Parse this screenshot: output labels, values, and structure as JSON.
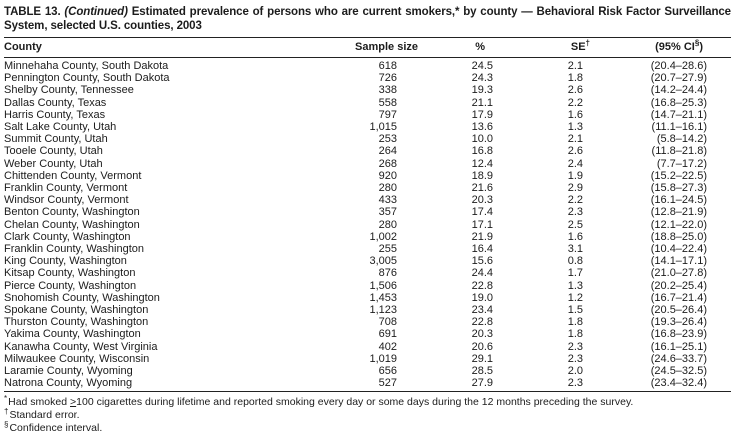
{
  "title": {
    "label": "TABLE 13.",
    "continued": "(Continued)",
    "text": "Estimated prevalence of persons who are current smokers,* by county — Behavioral Risk Factor Surveillance System, selected U.S. counties, 2003"
  },
  "colors": {
    "text": "#1c1c1c",
    "rule": "#222222",
    "background": "#ffffff"
  },
  "table": {
    "columns": {
      "county": "County",
      "sample_size": "Sample size",
      "percent": "%",
      "se": "SE",
      "se_sup": "†",
      "ci": "(95% CI",
      "ci_sup": "§",
      "ci_close": ")"
    },
    "rows": [
      {
        "county": "Minnehaha County, South Dakota",
        "sample_size": "618",
        "percent": "24.5",
        "se": "2.1",
        "ci": "(20.4–28.6)"
      },
      {
        "county": "Pennington County, South Dakota",
        "sample_size": "726",
        "percent": "24.3",
        "se": "1.8",
        "ci": "(20.7–27.9)"
      },
      {
        "county": "Shelby County, Tennessee",
        "sample_size": "338",
        "percent": "19.3",
        "se": "2.6",
        "ci": "(14.2–24.4)"
      },
      {
        "county": "Dallas County, Texas",
        "sample_size": "558",
        "percent": "21.1",
        "se": "2.2",
        "ci": "(16.8–25.3)"
      },
      {
        "county": "Harris County, Texas",
        "sample_size": "797",
        "percent": "17.9",
        "se": "1.6",
        "ci": "(14.7–21.1)"
      },
      {
        "county": "Salt Lake County, Utah",
        "sample_size": "1,015",
        "percent": "13.6",
        "se": "1.3",
        "ci": "(11.1–16.1)"
      },
      {
        "county": "Summit County, Utah",
        "sample_size": "253",
        "percent": "10.0",
        "se": "2.1",
        "ci": "(5.8–14.2)"
      },
      {
        "county": "Tooele County, Utah",
        "sample_size": "264",
        "percent": "16.8",
        "se": "2.6",
        "ci": "(11.8–21.8)"
      },
      {
        "county": "Weber County, Utah",
        "sample_size": "268",
        "percent": "12.4",
        "se": "2.4",
        "ci": "(7.7–17.2)"
      },
      {
        "county": "Chittenden County, Vermont",
        "sample_size": "920",
        "percent": "18.9",
        "se": "1.9",
        "ci": "(15.2–22.5)"
      },
      {
        "county": "Franklin County, Vermont",
        "sample_size": "280",
        "percent": "21.6",
        "se": "2.9",
        "ci": "(15.8–27.3)"
      },
      {
        "county": "Windsor County, Vermont",
        "sample_size": "433",
        "percent": "20.3",
        "se": "2.2",
        "ci": "(16.1–24.5)"
      },
      {
        "county": "Benton County, Washington",
        "sample_size": "357",
        "percent": "17.4",
        "se": "2.3",
        "ci": "(12.8–21.9)"
      },
      {
        "county": "Chelan County, Washington",
        "sample_size": "280",
        "percent": "17.1",
        "se": "2.5",
        "ci": "(12.1–22.0)"
      },
      {
        "county": "Clark County, Washington",
        "sample_size": "1,002",
        "percent": "21.9",
        "se": "1.6",
        "ci": "(18.8–25.0)"
      },
      {
        "county": "Franklin County, Washington",
        "sample_size": "255",
        "percent": "16.4",
        "se": "3.1",
        "ci": "(10.4–22.4)"
      },
      {
        "county": "King County, Washington",
        "sample_size": "3,005",
        "percent": "15.6",
        "se": "0.8",
        "ci": "(14.1–17.1)"
      },
      {
        "county": "Kitsap County, Washington",
        "sample_size": "876",
        "percent": "24.4",
        "se": "1.7",
        "ci": "(21.0–27.8)"
      },
      {
        "county": "Pierce County, Washington",
        "sample_size": "1,506",
        "percent": "22.8",
        "se": "1.3",
        "ci": "(20.2–25.4)"
      },
      {
        "county": "Snohomish County, Washington",
        "sample_size": "1,453",
        "percent": "19.0",
        "se": "1.2",
        "ci": "(16.7–21.4)"
      },
      {
        "county": "Spokane County, Washington",
        "sample_size": "1,123",
        "percent": "23.4",
        "se": "1.5",
        "ci": "(20.5–26.4)"
      },
      {
        "county": "Thurston County, Washington",
        "sample_size": "708",
        "percent": "22.8",
        "se": "1.8",
        "ci": "(19.3–26.4)"
      },
      {
        "county": "Yakima County, Washington",
        "sample_size": "691",
        "percent": "20.3",
        "se": "1.8",
        "ci": "(16.8–23.9)"
      },
      {
        "county": "Kanawha County, West Virginia",
        "sample_size": "402",
        "percent": "20.6",
        "se": "2.3",
        "ci": "(16.1–25.1)"
      },
      {
        "county": "Milwaukee County, Wisconsin",
        "sample_size": "1,019",
        "percent": "29.1",
        "se": "2.3",
        "ci": "(24.6–33.7)"
      },
      {
        "county": "Laramie County, Wyoming",
        "sample_size": "656",
        "percent": "28.5",
        "se": "2.0",
        "ci": "(24.5–32.5)"
      },
      {
        "county": "Natrona County, Wyoming",
        "sample_size": "527",
        "percent": "27.9",
        "se": "2.3",
        "ci": "(23.4–32.4)"
      }
    ]
  },
  "footnotes": {
    "f1": {
      "marker": "*",
      "pre": "Had smoked ",
      "geq": ">",
      "post": "100 cigarettes during lifetime and reported smoking every day or some days during the 12 months preceding the survey."
    },
    "f2": {
      "marker": "†",
      "text": "Standard error."
    },
    "f3": {
      "marker": "§",
      "text": "Confidence interval."
    }
  }
}
